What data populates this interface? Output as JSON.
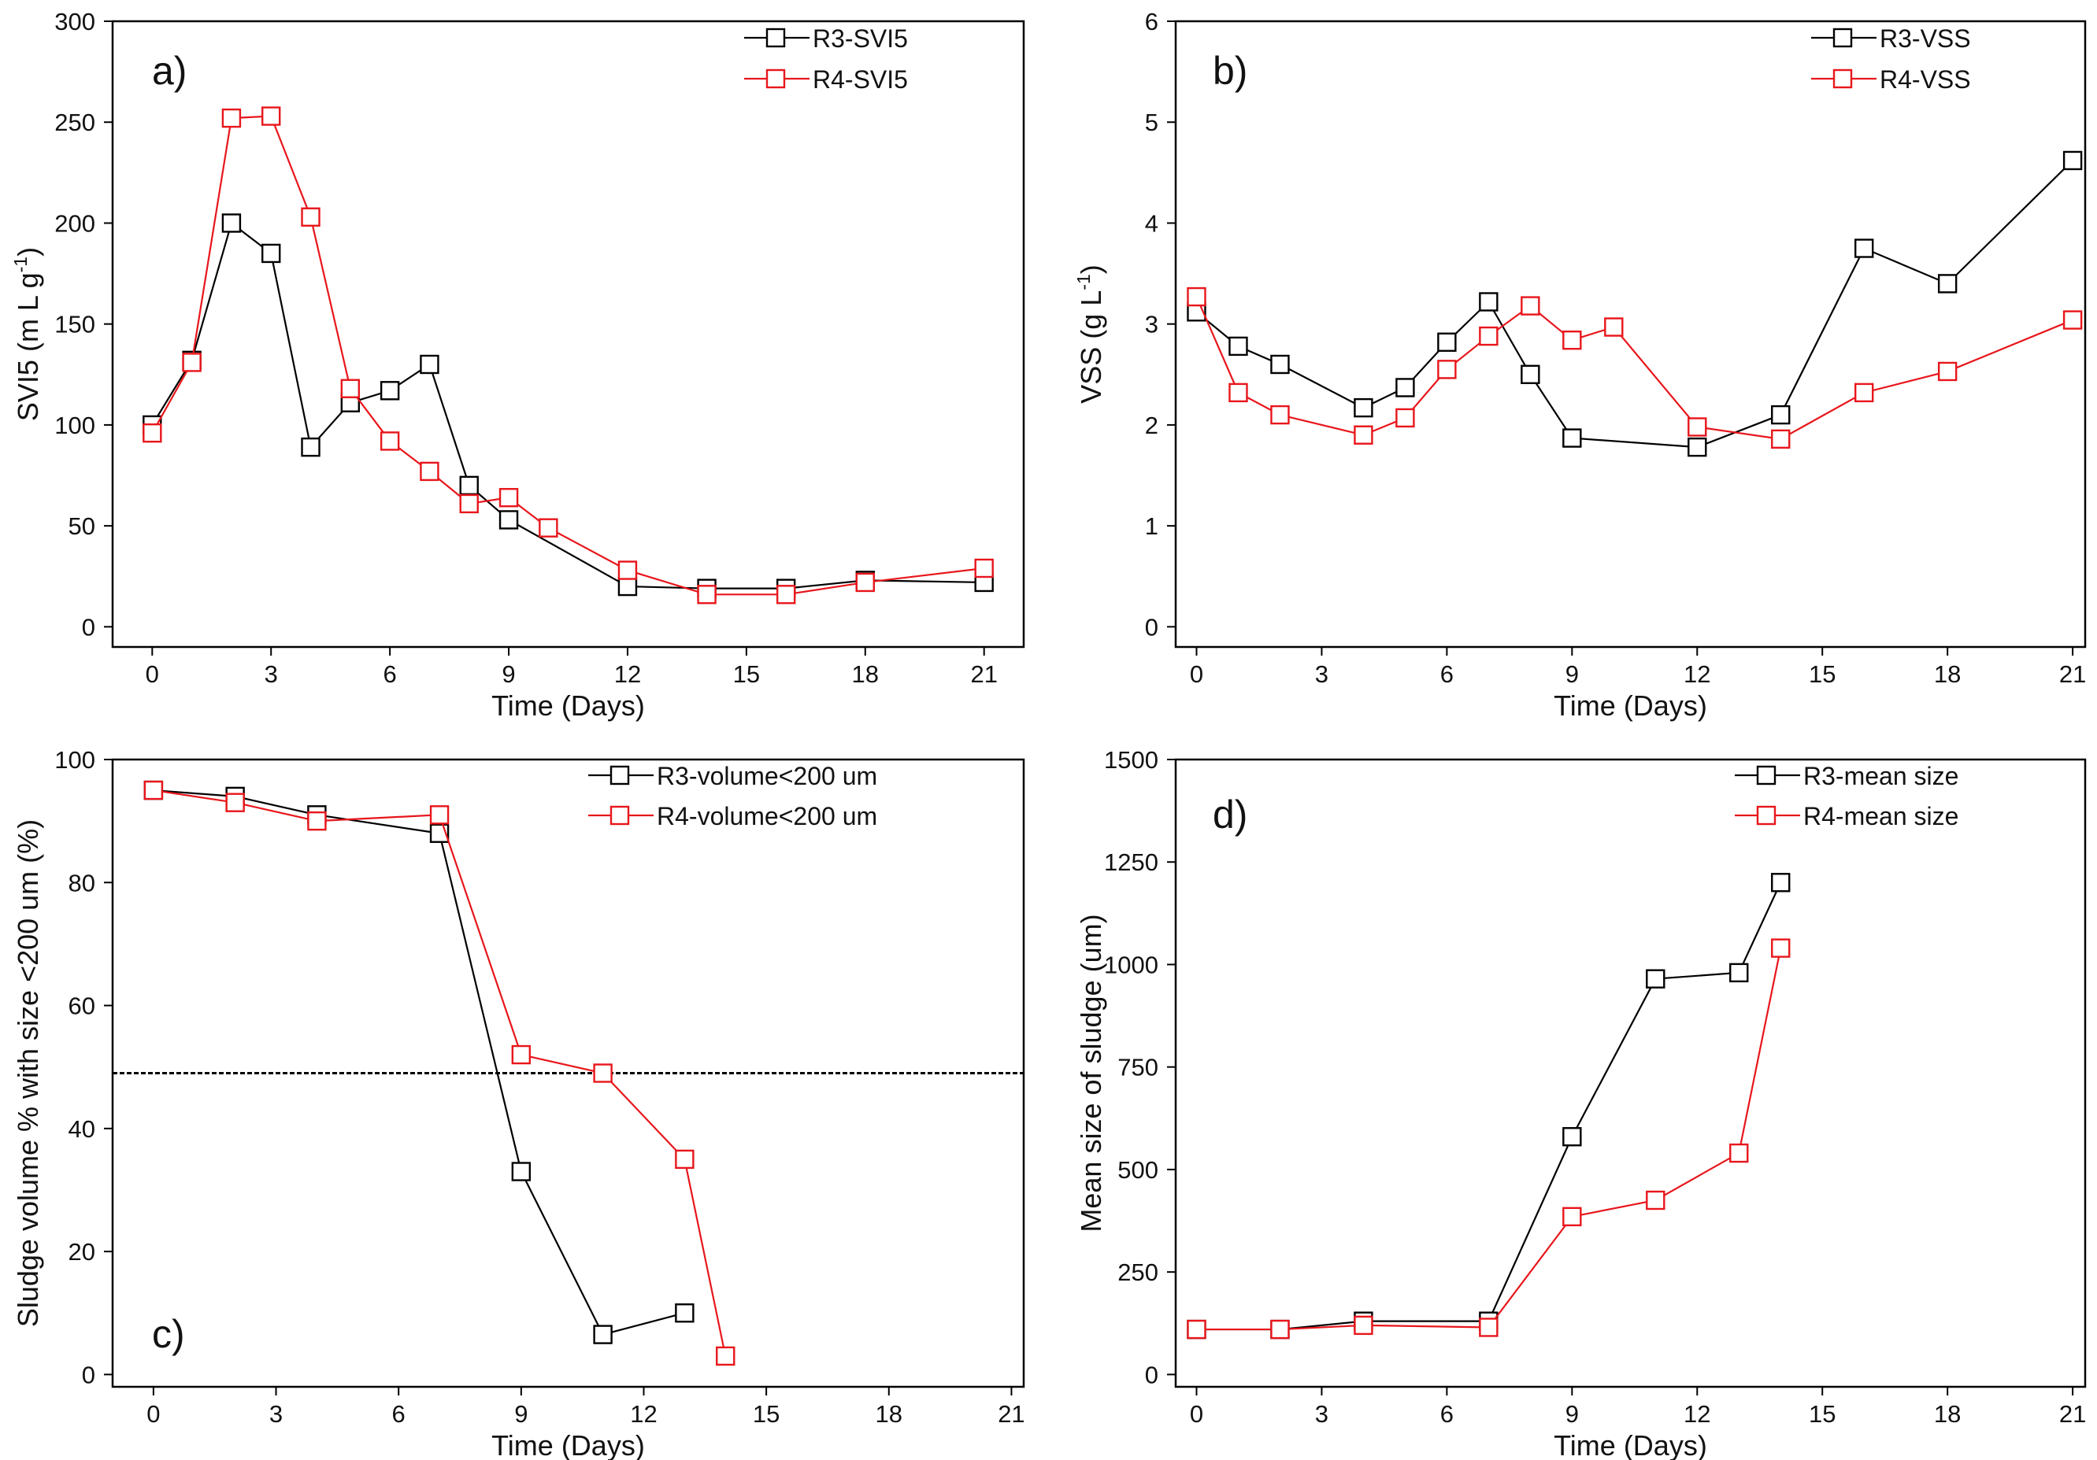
{
  "chart_data": [
    {
      "id": "a",
      "type": "line",
      "panel_label": "a)",
      "xlabel": "Time (Days)",
      "ylabel": "SVI5 (m L g",
      "ylabel_sup": "-1",
      "ylabel_close": ")",
      "xlim": [
        -1,
        22
      ],
      "ylim": [
        -10,
        300
      ],
      "xticks": [
        0,
        3,
        6,
        9,
        12,
        15,
        18,
        21
      ],
      "xtick_labels": [
        "0",
        "3",
        "6",
        "9",
        "12",
        "15",
        "18",
        "21"
      ],
      "yticks": [
        0,
        50,
        100,
        150,
        200,
        250,
        300
      ],
      "ytick_labels": [
        "0",
        "50",
        "100",
        "150",
        "200",
        "250",
        "300"
      ],
      "legend_position": "top-right",
      "series": [
        {
          "name": "R3-SVI5",
          "color": "#000000",
          "x": [
            0,
            1,
            2,
            3,
            4,
            5,
            6,
            7,
            8,
            9,
            12,
            14,
            16,
            18,
            21
          ],
          "y": [
            100,
            132,
            200,
            185,
            89,
            111,
            117,
            130,
            70,
            53,
            20,
            19,
            19,
            23,
            22
          ]
        },
        {
          "name": "R4-SVI5",
          "color": "#e8161b",
          "x": [
            0,
            1,
            2,
            3,
            4,
            5,
            6,
            7,
            8,
            9,
            10,
            12,
            14,
            16,
            18,
            21
          ],
          "y": [
            96,
            131,
            252,
            253,
            203,
            118,
            92,
            77,
            61,
            64,
            49,
            28,
            16,
            16,
            22,
            29
          ]
        }
      ]
    },
    {
      "id": "b",
      "type": "line",
      "panel_label": "b)",
      "xlabel": "Time (Days)",
      "ylabel": "VSS (g L",
      "ylabel_sup": "-1",
      "ylabel_close": ")",
      "xlim": [
        -0.5,
        21.3
      ],
      "ylim": [
        -0.2,
        6
      ],
      "xticks": [
        0,
        3,
        6,
        9,
        12,
        15,
        18,
        21
      ],
      "xtick_labels": [
        "0",
        "3",
        "6",
        "9",
        "12",
        "15",
        "18",
        "21"
      ],
      "yticks": [
        0,
        1,
        2,
        3,
        4,
        5,
        6
      ],
      "ytick_labels": [
        "0",
        "1",
        "2",
        "3",
        "4",
        "5",
        "6"
      ],
      "legend_position": "top-right",
      "series": [
        {
          "name": "R3-VSS",
          "color": "#000000",
          "x": [
            0,
            1,
            2,
            4,
            5,
            6,
            7,
            8,
            9,
            12,
            14,
            16,
            18,
            21
          ],
          "y": [
            3.12,
            2.78,
            2.6,
            2.17,
            2.37,
            2.82,
            3.22,
            2.5,
            1.87,
            1.78,
            2.1,
            3.75,
            3.4,
            4.62
          ]
        },
        {
          "name": "R4-VSS",
          "color": "#e8161b",
          "x": [
            0,
            1,
            2,
            4,
            5,
            6,
            7,
            8,
            9,
            10,
            12,
            14,
            16,
            18,
            21
          ],
          "y": [
            3.27,
            2.32,
            2.1,
            1.9,
            2.07,
            2.55,
            2.88,
            3.18,
            2.84,
            2.97,
            1.98,
            1.86,
            2.32,
            2.53,
            3.04
          ]
        }
      ]
    },
    {
      "id": "c",
      "type": "line",
      "panel_label": "c)",
      "xlabel": "Time (Days)",
      "ylabel": "Sludge volume % with size <200 um (%)",
      "xlim": [
        -1,
        21.3
      ],
      "ylim": [
        -2,
        100
      ],
      "xticks": [
        0,
        3,
        6,
        9,
        12,
        15,
        18,
        21
      ],
      "xtick_labels": [
        "0",
        "3",
        "6",
        "9",
        "12",
        "15",
        "18",
        "21"
      ],
      "yticks": [
        0,
        20,
        40,
        60,
        80,
        100
      ],
      "ytick_labels": [
        "0",
        "20",
        "40",
        "60",
        "80",
        "100"
      ],
      "legend_position": "top-right",
      "reference_line_y": 49,
      "series": [
        {
          "name": "R3-volume<200 um",
          "color": "#000000",
          "x": [
            0,
            2,
            4,
            7,
            9,
            11,
            13
          ],
          "y": [
            95,
            94,
            91,
            88,
            33,
            6.5,
            10
          ]
        },
        {
          "name": "R4-volume<200 um",
          "color": "#e8161b",
          "x": [
            0,
            2,
            4,
            7,
            9,
            11,
            13,
            14
          ],
          "y": [
            95,
            93,
            90,
            91,
            52,
            49,
            35,
            3
          ]
        }
      ]
    },
    {
      "id": "d",
      "type": "line",
      "panel_label": "d)",
      "xlabel": "Time (Days)",
      "ylabel": "Mean size of sludge (um)",
      "xlim": [
        -0.5,
        21.3
      ],
      "ylim": [
        -30,
        1500
      ],
      "xticks": [
        0,
        3,
        6,
        9,
        12,
        15,
        18,
        21
      ],
      "xtick_labels": [
        "0",
        "3",
        "6",
        "9",
        "12",
        "15",
        "18",
        "21"
      ],
      "yticks": [
        0,
        250,
        500,
        750,
        1000,
        1250,
        1500
      ],
      "ytick_labels": [
        "0",
        "250",
        "500",
        "750",
        "1000",
        "1250",
        "1500"
      ],
      "legend_position": "top-right",
      "series": [
        {
          "name": "R3-mean size",
          "color": "#000000",
          "x": [
            0,
            2,
            4,
            7,
            9,
            11,
            13,
            14
          ],
          "y": [
            110,
            110,
            130,
            130,
            580,
            965,
            980,
            1200
          ]
        },
        {
          "name": "R4-mean size",
          "color": "#e8161b",
          "x": [
            0,
            2,
            4,
            7,
            9,
            11,
            13,
            14
          ],
          "y": [
            110,
            110,
            120,
            115,
            385,
            425,
            540,
            1040
          ]
        }
      ]
    }
  ]
}
